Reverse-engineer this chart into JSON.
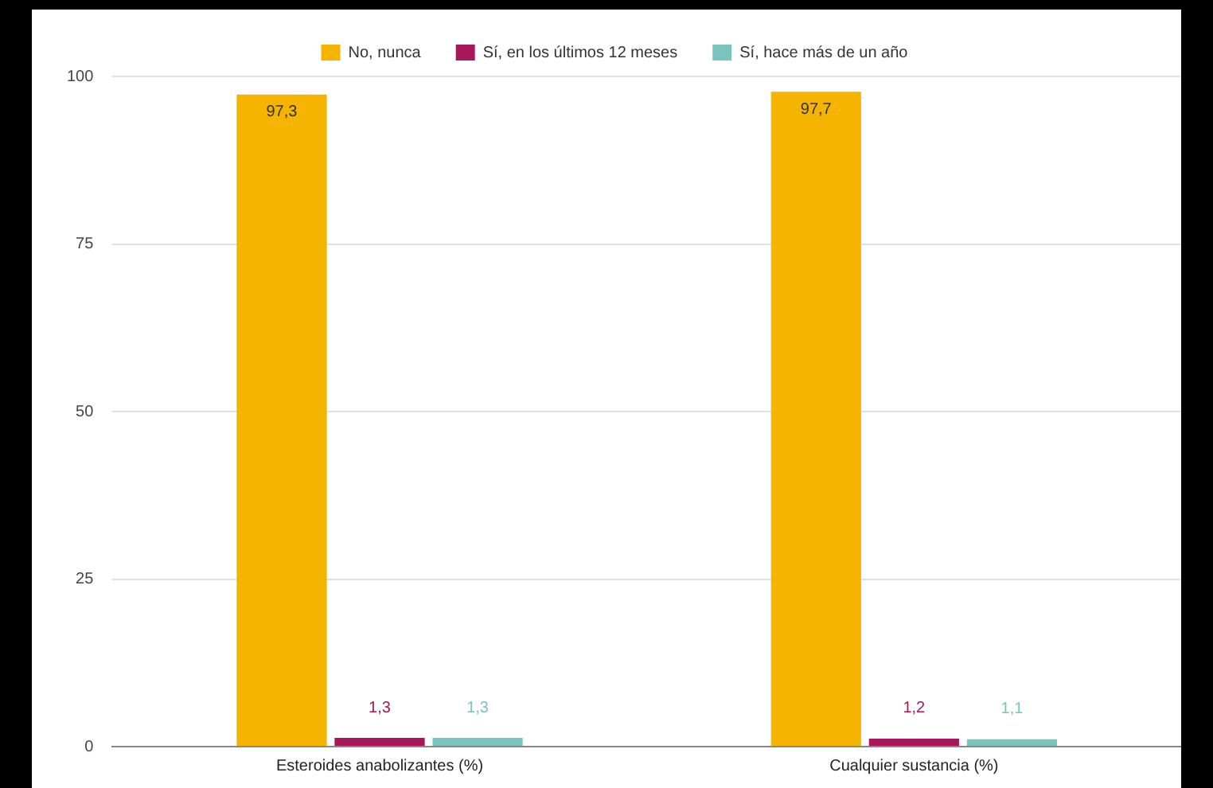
{
  "chart_data": {
    "type": "bar",
    "categories": [
      "Esteroides anabolizantes (%)",
      "Cualquier sustancia (%)"
    ],
    "series": [
      {
        "name": "No, nunca",
        "color": "#f4b400",
        "values": [
          97.3,
          97.7
        ],
        "value_labels": [
          "97,3",
          "97,7"
        ]
      },
      {
        "name": "Sí, en los últimos 12 meses",
        "color": "#a8175a",
        "values": [
          1.3,
          1.2
        ],
        "value_labels": [
          "1,3",
          "1,2"
        ]
      },
      {
        "name": "Sí, hace más de un año",
        "color": "#7bc4bd",
        "values": [
          1.3,
          1.1
        ],
        "value_labels": [
          "1,3",
          "1,1"
        ]
      }
    ],
    "ylim": [
      0,
      100
    ],
    "yticks": [
      0,
      25,
      50,
      75,
      100
    ],
    "grid": "y",
    "legend": "top"
  }
}
